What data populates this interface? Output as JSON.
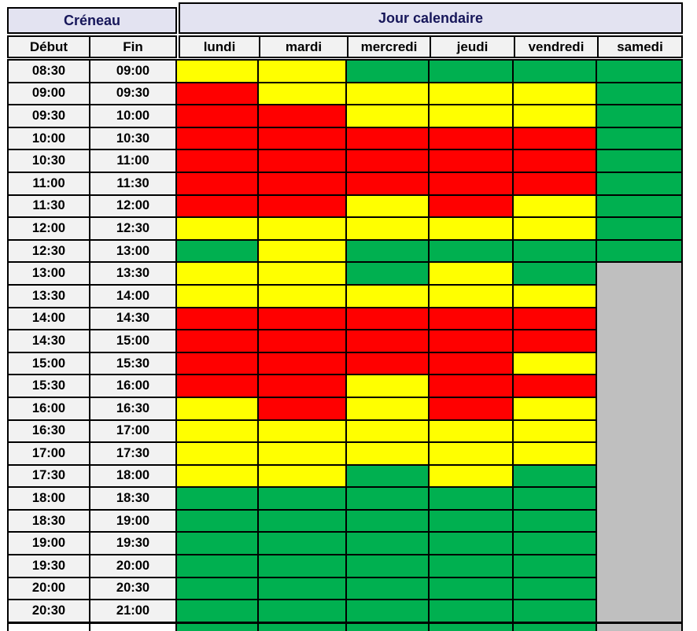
{
  "table": {
    "group_headers": {
      "creneau": "Créneau",
      "jour": "Jour calendaire"
    },
    "time_headers": [
      "Début",
      "Fin"
    ],
    "day_headers": [
      "lundi",
      "mardi",
      "mercredi",
      "jeudi",
      "vendredi",
      "samedi"
    ]
  },
  "colors": {
    "R": "#FF0000",
    "Y": "#FFFF00",
    "G": "#00B050",
    "X": "#BFBFBF",
    "header_bg": "#E3E3F1",
    "header_text": "#17175A",
    "subheader_bg": "#F2F2F2",
    "gridline": "#000000",
    "empty": "#FFFFFF"
  },
  "chart_data": {
    "type": "heatmap",
    "row_group_label": "Créneau",
    "column_group_label": "Jour calendaire",
    "row_fields": [
      "Début",
      "Fin"
    ],
    "columns": [
      "lundi",
      "mardi",
      "mercredi",
      "jeudi",
      "vendredi",
      "samedi"
    ],
    "color_codes": {
      "R": "red",
      "Y": "yellow",
      "G": "green",
      "X": "gray"
    },
    "rows": [
      {
        "debut": "08:30",
        "fin": "09:00",
        "values": [
          "Y",
          "Y",
          "G",
          "G",
          "G",
          "G"
        ]
      },
      {
        "debut": "09:00",
        "fin": "09:30",
        "values": [
          "R",
          "Y",
          "Y",
          "Y",
          "Y",
          "G"
        ]
      },
      {
        "debut": "09:30",
        "fin": "10:00",
        "values": [
          "R",
          "R",
          "Y",
          "Y",
          "Y",
          "G"
        ]
      },
      {
        "debut": "10:00",
        "fin": "10:30",
        "values": [
          "R",
          "R",
          "R",
          "R",
          "R",
          "G"
        ]
      },
      {
        "debut": "10:30",
        "fin": "11:00",
        "values": [
          "R",
          "R",
          "R",
          "R",
          "R",
          "G"
        ]
      },
      {
        "debut": "11:00",
        "fin": "11:30",
        "values": [
          "R",
          "R",
          "R",
          "R",
          "R",
          "G"
        ]
      },
      {
        "debut": "11:30",
        "fin": "12:00",
        "values": [
          "R",
          "R",
          "Y",
          "R",
          "Y",
          "G"
        ]
      },
      {
        "debut": "12:00",
        "fin": "12:30",
        "values": [
          "Y",
          "Y",
          "Y",
          "Y",
          "Y",
          "G"
        ]
      },
      {
        "debut": "12:30",
        "fin": "13:00",
        "values": [
          "G",
          "Y",
          "G",
          "G",
          "G",
          "G"
        ]
      },
      {
        "debut": "13:00",
        "fin": "13:30",
        "values": [
          "Y",
          "Y",
          "G",
          "Y",
          "G",
          "X"
        ]
      },
      {
        "debut": "13:30",
        "fin": "14:00",
        "values": [
          "Y",
          "Y",
          "Y",
          "Y",
          "Y",
          "X"
        ]
      },
      {
        "debut": "14:00",
        "fin": "14:30",
        "values": [
          "R",
          "R",
          "R",
          "R",
          "R",
          "X"
        ]
      },
      {
        "debut": "14:30",
        "fin": "15:00",
        "values": [
          "R",
          "R",
          "R",
          "R",
          "R",
          "X"
        ]
      },
      {
        "debut": "15:00",
        "fin": "15:30",
        "values": [
          "R",
          "R",
          "R",
          "R",
          "Y",
          "X"
        ]
      },
      {
        "debut": "15:30",
        "fin": "16:00",
        "values": [
          "R",
          "R",
          "Y",
          "R",
          "R",
          "X"
        ]
      },
      {
        "debut": "16:00",
        "fin": "16:30",
        "values": [
          "Y",
          "R",
          "Y",
          "R",
          "Y",
          "X"
        ]
      },
      {
        "debut": "16:30",
        "fin": "17:00",
        "values": [
          "Y",
          "Y",
          "Y",
          "Y",
          "Y",
          "X"
        ]
      },
      {
        "debut": "17:00",
        "fin": "17:30",
        "values": [
          "Y",
          "Y",
          "Y",
          "Y",
          "Y",
          "X"
        ]
      },
      {
        "debut": "17:30",
        "fin": "18:00",
        "values": [
          "Y",
          "Y",
          "G",
          "Y",
          "G",
          "X"
        ]
      },
      {
        "debut": "18:00",
        "fin": "18:30",
        "values": [
          "G",
          "G",
          "G",
          "G",
          "G",
          "X"
        ]
      },
      {
        "debut": "18:30",
        "fin": "19:00",
        "values": [
          "G",
          "G",
          "G",
          "G",
          "G",
          "X"
        ]
      },
      {
        "debut": "19:00",
        "fin": "19:30",
        "values": [
          "G",
          "G",
          "G",
          "G",
          "G",
          "X"
        ]
      },
      {
        "debut": "19:30",
        "fin": "20:00",
        "values": [
          "G",
          "G",
          "G",
          "G",
          "G",
          "X"
        ]
      },
      {
        "debut": "20:00",
        "fin": "20:30",
        "values": [
          "G",
          "G",
          "G",
          "G",
          "G",
          "X"
        ]
      },
      {
        "debut": "20:30",
        "fin": "21:00",
        "values": [
          "G",
          "G",
          "G",
          "G",
          "G",
          "X"
        ]
      }
    ],
    "partial_bottom_row_values": [
      "G",
      "G",
      "G",
      "G",
      "G",
      "X"
    ],
    "notes": "samedi column is a continuous gray block without internal gridlines from 13:00 to the bottom edge"
  }
}
